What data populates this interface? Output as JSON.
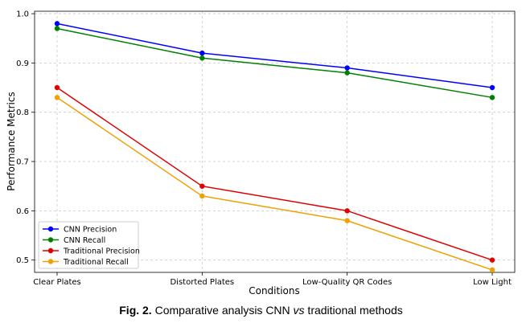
{
  "chart_data": {
    "type": "line",
    "categories": [
      "Clear Plates",
      "Distorted Plates",
      "Low-Quality QR Codes",
      "Low Light"
    ],
    "xlabel": "Conditions",
    "ylabel": "Performance Metrics",
    "ylim": [
      0.475,
      1.005
    ],
    "yticks": [
      "0.5",
      "0.6",
      "0.7",
      "0.8",
      "0.9",
      "1.0"
    ],
    "grid": true,
    "legend_position": "lower-left",
    "series": [
      {
        "name": "CNN Precision",
        "color": "#0000ff",
        "values": [
          0.98,
          0.92,
          0.89,
          0.85
        ]
      },
      {
        "name": "CNN Recall",
        "color": "#008000",
        "values": [
          0.97,
          0.91,
          0.88,
          0.83
        ]
      },
      {
        "name": "Traditional Precision",
        "color": "#e00000",
        "values": [
          0.85,
          0.65,
          0.6,
          0.5
        ]
      },
      {
        "name": "Traditional Recall",
        "color": "#f0a000",
        "values": [
          0.83,
          0.63,
          0.58,
          0.48
        ]
      }
    ]
  },
  "caption": {
    "fig_label": "Fig. 2.",
    "text_before": " Comparative analysis CNN ",
    "italic": "vs",
    "text_after": " traditional methods"
  }
}
